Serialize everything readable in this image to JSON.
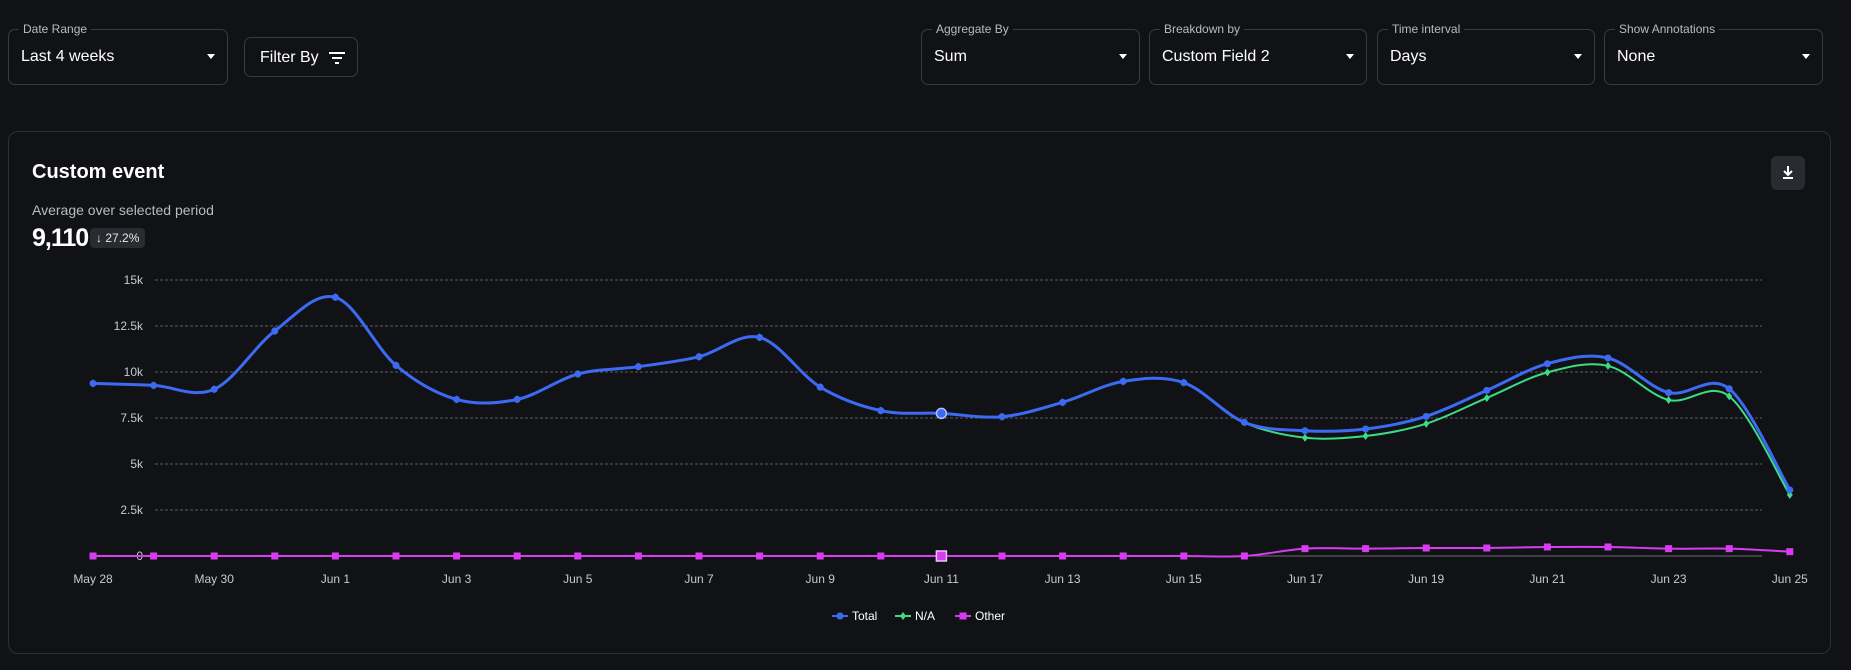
{
  "controls": {
    "date_range": {
      "label": "Date Range",
      "value": "Last 4 weeks"
    },
    "filter_by": {
      "label": "Filter By"
    },
    "aggregate_by": {
      "label": "Aggregate By",
      "value": "Sum"
    },
    "breakdown_by": {
      "label": "Breakdown by",
      "value": "Custom Field 2"
    },
    "time_interval": {
      "label": "Time interval",
      "value": "Days"
    },
    "show_annotations": {
      "label": "Show Annotations",
      "value": "None"
    }
  },
  "card": {
    "title": "Custom event",
    "subtitle": "Average over selected period",
    "average": "9,110",
    "change": "27.2%",
    "change_direction": "down"
  },
  "chart_data": {
    "type": "line",
    "title": "Custom event",
    "x": [
      "May 28",
      "May 29",
      "May 30",
      "May 31",
      "Jun 1",
      "Jun 2",
      "Jun 3",
      "Jun 4",
      "Jun 5",
      "Jun 6",
      "Jun 7",
      "Jun 8",
      "Jun 9",
      "Jun 10",
      "Jun 11",
      "Jun 12",
      "Jun 13",
      "Jun 14",
      "Jun 15",
      "Jun 16",
      "Jun 17",
      "Jun 18",
      "Jun 19",
      "Jun 20",
      "Jun 21",
      "Jun 22",
      "Jun 23",
      "Jun 24",
      "Jun 25"
    ],
    "x_tick_labels": [
      "May 28",
      "May 30",
      "Jun 1",
      "Jun 3",
      "Jun 5",
      "Jun 7",
      "Jun 9",
      "Jun 11",
      "Jun 13",
      "Jun 15",
      "Jun 17",
      "Jun 19",
      "Jun 21",
      "Jun 23",
      "Jun 25"
    ],
    "y_tick_labels": [
      "0",
      "2.5k",
      "5k",
      "7.5k",
      "10k",
      "12.5k",
      "15k"
    ],
    "ylim": [
      0,
      15000
    ],
    "grid": true,
    "legend_position": "bottom-center",
    "highlighted_index": 14,
    "series": [
      {
        "name": "Total",
        "color": "#3d6af2",
        "marker": "circle",
        "values": [
          9380,
          9270,
          9060,
          12230,
          14060,
          10360,
          8510,
          8510,
          9890,
          10290,
          10830,
          11880,
          9180,
          7900,
          7750,
          7570,
          8350,
          9490,
          9420,
          7260,
          6810,
          6900,
          7590,
          9000,
          10450,
          10760,
          8880,
          9090,
          3590
        ]
      },
      {
        "name": "N/A",
        "color": "#3ddc84",
        "marker": "diamond",
        "values": [
          9380,
          9270,
          9060,
          12230,
          14060,
          10360,
          8510,
          8510,
          9890,
          10290,
          10830,
          11880,
          9180,
          7900,
          7750,
          7570,
          8350,
          9490,
          9420,
          7260,
          6430,
          6520,
          7190,
          8590,
          9980,
          10330,
          8480,
          8680,
          3320
        ]
      },
      {
        "name": "Other",
        "color": "#d63cf0",
        "marker": "square",
        "values": [
          0,
          0,
          0,
          0,
          0,
          0,
          0,
          0,
          0,
          0,
          0,
          0,
          0,
          0,
          0,
          0,
          0,
          0,
          0,
          0,
          400,
          400,
          435,
          435,
          490,
          490,
          400,
          400,
          235
        ]
      }
    ]
  }
}
